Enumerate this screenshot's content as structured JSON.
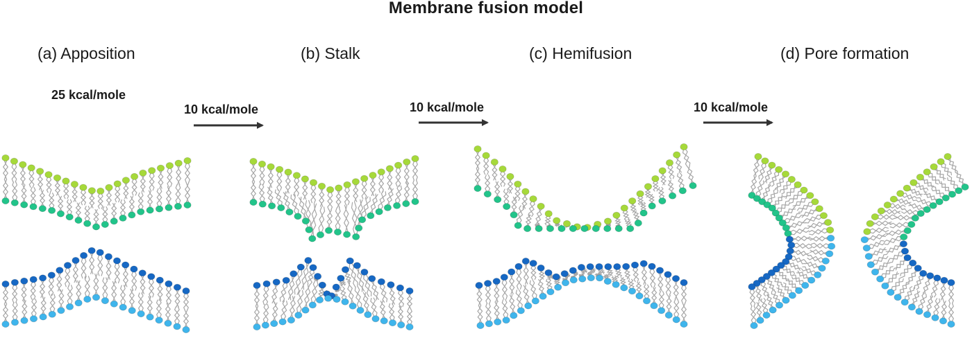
{
  "title": "Membrane fusion model",
  "stages": [
    {
      "label": "(a) Apposition"
    },
    {
      "label": "(b) Stalk"
    },
    {
      "label": "(c) Hemifusion"
    },
    {
      "label": "(d) Pore formation"
    }
  ],
  "barrier": "25 kcal/mole",
  "transitions": [
    {
      "label": "10 kcal/mole"
    },
    {
      "label": "10 kcal/mole"
    },
    {
      "label": "10 kcal/mole"
    }
  ],
  "colors": {
    "upper_outer_head": "#a6d93a",
    "upper_inner_head": "#22c48a",
    "lower_inner_head": "#1668c4",
    "lower_outer_head": "#3fb5ec",
    "tail": "#a6a6a6",
    "arrow": "#333333"
  }
}
